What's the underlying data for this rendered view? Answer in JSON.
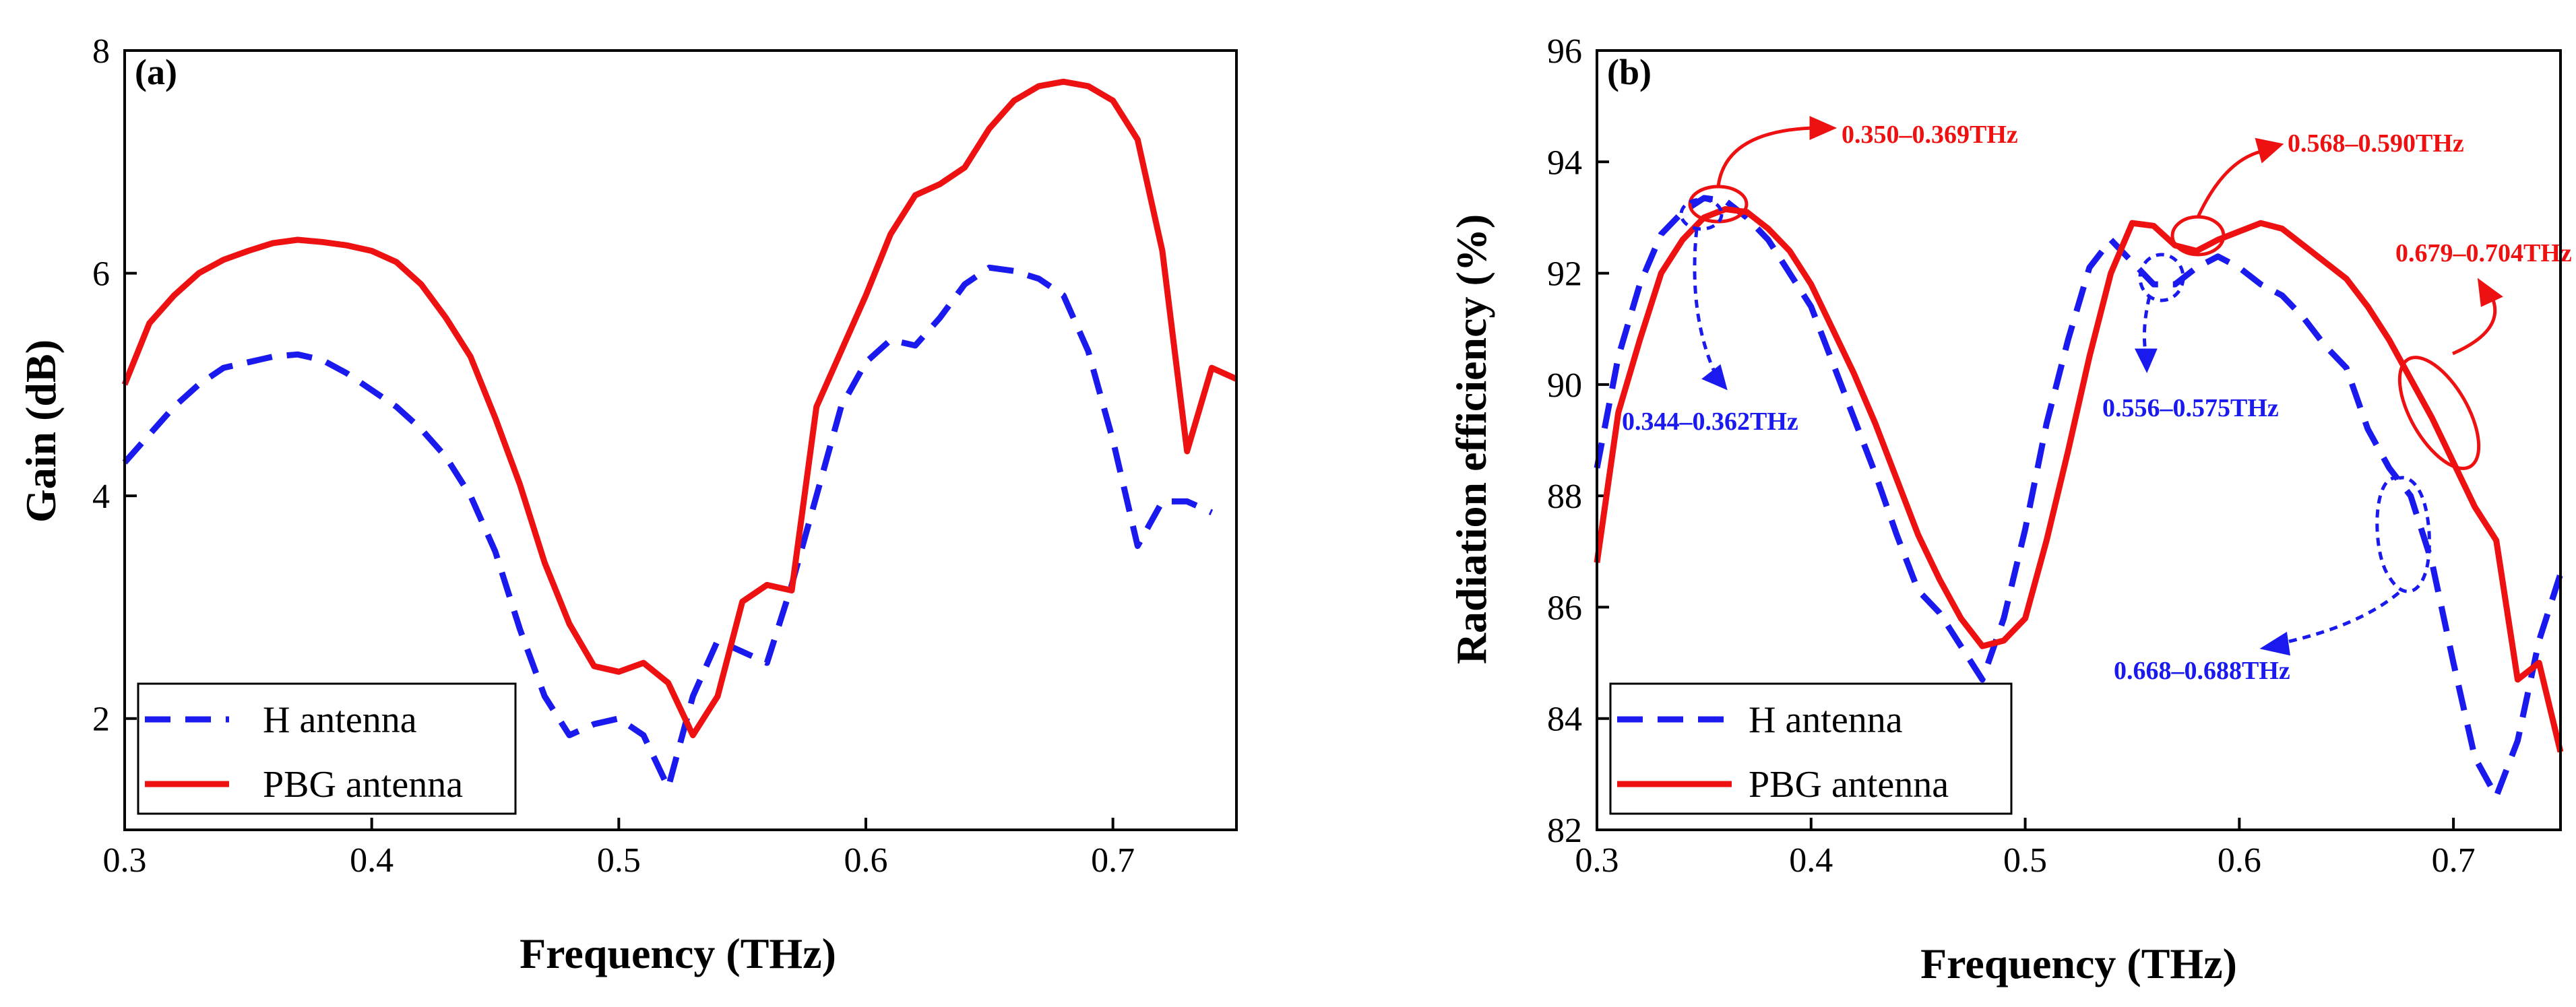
{
  "colors": {
    "h_antenna": "#1a1aee",
    "pbg_antenna": "#ee1111",
    "axis": "#000000"
  },
  "chart_data": [
    {
      "type": "line",
      "panel_label": "(a)",
      "xlabel": "Frequency (THz)",
      "ylabel": "Gain (dB)",
      "xlim": [
        0.3,
        0.75
      ],
      "ylim": [
        1,
        8
      ],
      "xticks": [
        0.3,
        0.4,
        0.5,
        0.6,
        0.7
      ],
      "xtick_labels": [
        "0.3",
        "0.4",
        "0.5",
        "0.6",
        "0.7"
      ],
      "yticks": [
        2,
        4,
        6,
        8
      ],
      "ytick_labels": [
        "2",
        "4",
        "6",
        "8"
      ],
      "legend_position": "bottom-left",
      "series": [
        {
          "name": "H antenna",
          "style": "dashed",
          "color": "#1a1aee",
          "x": [
            0.3,
            0.31,
            0.32,
            0.33,
            0.34,
            0.35,
            0.36,
            0.37,
            0.38,
            0.39,
            0.4,
            0.41,
            0.42,
            0.43,
            0.44,
            0.45,
            0.46,
            0.47,
            0.48,
            0.49,
            0.5,
            0.51,
            0.52,
            0.53,
            0.54,
            0.55,
            0.56,
            0.57,
            0.58,
            0.59,
            0.6,
            0.61,
            0.62,
            0.63,
            0.64,
            0.65,
            0.66,
            0.67,
            0.68,
            0.69,
            0.7,
            0.71,
            0.72,
            0.73,
            0.74
          ],
          "y": [
            4.3,
            4.55,
            4.8,
            5.0,
            5.15,
            5.2,
            5.25,
            5.27,
            5.22,
            5.1,
            4.95,
            4.8,
            4.6,
            4.35,
            4.0,
            3.5,
            2.8,
            2.2,
            1.85,
            1.95,
            2.0,
            1.85,
            1.38,
            2.2,
            2.7,
            2.6,
            2.5,
            3.2,
            4.0,
            4.8,
            5.2,
            5.4,
            5.35,
            5.6,
            5.9,
            6.05,
            6.02,
            5.95,
            5.8,
            5.3,
            4.5,
            3.55,
            3.95,
            3.95,
            3.85
          ]
        },
        {
          "name": "PBG antenna",
          "style": "solid",
          "color": "#ee1111",
          "x": [
            0.3,
            0.31,
            0.32,
            0.33,
            0.34,
            0.35,
            0.36,
            0.37,
            0.38,
            0.39,
            0.4,
            0.41,
            0.42,
            0.43,
            0.44,
            0.45,
            0.46,
            0.47,
            0.48,
            0.49,
            0.5,
            0.51,
            0.52,
            0.53,
            0.54,
            0.55,
            0.56,
            0.57,
            0.58,
            0.59,
            0.6,
            0.61,
            0.62,
            0.63,
            0.64,
            0.65,
            0.66,
            0.67,
            0.68,
            0.69,
            0.7,
            0.71,
            0.72,
            0.73,
            0.74,
            0.75
          ],
          "y": [
            5.0,
            5.55,
            5.8,
            6.0,
            6.12,
            6.2,
            6.27,
            6.3,
            6.28,
            6.25,
            6.2,
            6.1,
            5.9,
            5.6,
            5.25,
            4.7,
            4.1,
            3.4,
            2.85,
            2.47,
            2.42,
            2.5,
            2.32,
            1.85,
            2.2,
            3.05,
            3.2,
            3.15,
            4.8,
            5.3,
            5.8,
            6.35,
            6.7,
            6.8,
            6.95,
            7.3,
            7.55,
            7.68,
            7.72,
            7.68,
            7.55,
            7.2,
            6.2,
            4.4,
            5.15,
            5.05
          ]
        }
      ]
    },
    {
      "type": "line",
      "panel_label": "(b)",
      "xlabel": "Frequency (THz)",
      "ylabel": "Radiation efficiency (%)",
      "xlim": [
        0.3,
        0.75
      ],
      "ylim": [
        82,
        96
      ],
      "xticks": [
        0.3,
        0.4,
        0.5,
        0.6,
        0.7
      ],
      "xtick_labels": [
        "0.3",
        "0.4",
        "0.5",
        "0.6",
        "0.7"
      ],
      "yticks": [
        82,
        84,
        86,
        88,
        90,
        92,
        94,
        96
      ],
      "ytick_labels": [
        "82",
        "84",
        "86",
        "88",
        "90",
        "92",
        "94",
        "96"
      ],
      "legend_position": "bottom-left",
      "series": [
        {
          "name": "H antenna",
          "style": "dashed",
          "color": "#1a1aee",
          "x": [
            0.3,
            0.31,
            0.32,
            0.33,
            0.34,
            0.35,
            0.36,
            0.37,
            0.38,
            0.39,
            0.4,
            0.41,
            0.42,
            0.43,
            0.44,
            0.45,
            0.46,
            0.47,
            0.48,
            0.49,
            0.5,
            0.51,
            0.52,
            0.53,
            0.54,
            0.55,
            0.56,
            0.57,
            0.58,
            0.59,
            0.6,
            0.61,
            0.62,
            0.63,
            0.64,
            0.65,
            0.66,
            0.67,
            0.68,
            0.69,
            0.7,
            0.71,
            0.72,
            0.73,
            0.74,
            0.75
          ],
          "y": [
            88.5,
            90.5,
            91.8,
            92.7,
            93.1,
            93.35,
            93.3,
            93.0,
            92.6,
            92.0,
            91.4,
            90.4,
            89.4,
            88.4,
            87.3,
            86.3,
            85.9,
            85.3,
            84.7,
            85.8,
            87.4,
            89.3,
            90.8,
            92.1,
            92.6,
            92.2,
            91.8,
            91.8,
            92.1,
            92.3,
            92.1,
            91.8,
            91.6,
            91.2,
            90.7,
            90.3,
            89.2,
            88.5,
            88.0,
            86.8,
            85.0,
            83.3,
            82.6,
            83.6,
            85.4,
            86.6
          ]
        },
        {
          "name": "PBG antenna",
          "style": "solid",
          "color": "#ee1111",
          "x": [
            0.3,
            0.31,
            0.32,
            0.33,
            0.34,
            0.35,
            0.36,
            0.37,
            0.38,
            0.39,
            0.4,
            0.41,
            0.42,
            0.43,
            0.44,
            0.45,
            0.46,
            0.47,
            0.48,
            0.49,
            0.5,
            0.51,
            0.52,
            0.53,
            0.54,
            0.55,
            0.56,
            0.57,
            0.58,
            0.59,
            0.6,
            0.61,
            0.62,
            0.63,
            0.64,
            0.65,
            0.66,
            0.67,
            0.68,
            0.69,
            0.7,
            0.71,
            0.72,
            0.73,
            0.74,
            0.75
          ],
          "y": [
            86.8,
            89.5,
            90.8,
            92.0,
            92.6,
            93.0,
            93.15,
            93.1,
            92.8,
            92.4,
            91.8,
            91.0,
            90.2,
            89.3,
            88.3,
            87.3,
            86.5,
            85.8,
            85.3,
            85.4,
            85.8,
            87.2,
            88.8,
            90.5,
            92.0,
            92.9,
            92.85,
            92.5,
            92.4,
            92.6,
            92.75,
            92.9,
            92.8,
            92.5,
            92.2,
            91.9,
            91.4,
            90.8,
            90.1,
            89.4,
            88.6,
            87.8,
            87.2,
            84.7,
            85.0,
            83.4
          ]
        }
      ],
      "annotations": [
        {
          "text": "0.350–0.369THz",
          "color": "#ee1111"
        },
        {
          "text": "0.568–0.590THz",
          "color": "#ee1111"
        },
        {
          "text": "0.679–0.704THz",
          "color": "#ee1111"
        },
        {
          "text": "0.344–0.362THz",
          "color": "#1a1aee"
        },
        {
          "text": "0.556–0.575THz",
          "color": "#1a1aee"
        },
        {
          "text": "0.668–0.688THz",
          "color": "#1a1aee"
        }
      ]
    }
  ]
}
